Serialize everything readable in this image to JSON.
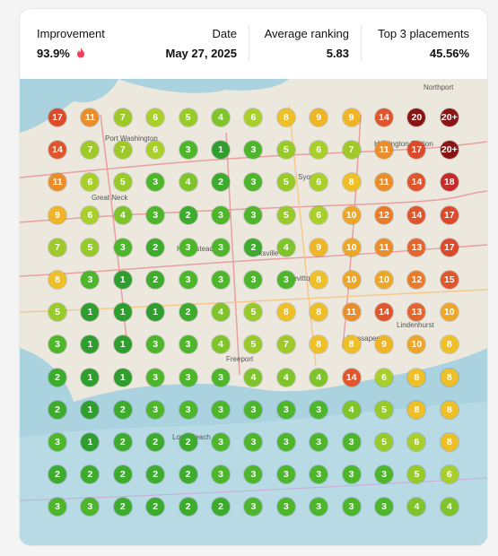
{
  "header": {
    "improvement_label": "Improvement",
    "improvement_value": "93.9%",
    "date_label": "Date",
    "date_value": "May 27, 2025",
    "avg_label": "Average ranking",
    "avg_value": "5.83",
    "top3_label": "Top 3 placements",
    "top3_value": "45.56%"
  },
  "map": {
    "places": [
      "Port Washington",
      "Great Neck",
      "Hempstead",
      "Huntington Station",
      "Hicksville",
      "Levittown",
      "Massapequa",
      "Long Beach",
      "Freeport",
      "Syosset",
      "Lindenhurst",
      "Northport"
    ]
  },
  "grid": {
    "rows": [
      [
        17,
        11,
        7,
        6,
        5,
        4,
        6,
        8,
        9,
        9,
        14,
        20,
        "20+"
      ],
      [
        14,
        7,
        7,
        6,
        3,
        1,
        3,
        5,
        6,
        7,
        11,
        17,
        "20+"
      ],
      [
        11,
        6,
        5,
        3,
        4,
        2,
        3,
        5,
        6,
        8,
        11,
        14,
        18
      ],
      [
        9,
        6,
        4,
        3,
        2,
        3,
        3,
        5,
        6,
        10,
        12,
        14,
        17
      ],
      [
        7,
        5,
        3,
        2,
        3,
        3,
        2,
        4,
        9,
        10,
        11,
        13,
        17
      ],
      [
        8,
        3,
        1,
        2,
        3,
        3,
        3,
        3,
        8,
        10,
        10,
        12,
        15
      ],
      [
        5,
        1,
        1,
        1,
        2,
        4,
        5,
        8,
        8,
        11,
        14,
        13,
        10
      ],
      [
        3,
        1,
        1,
        3,
        3,
        4,
        5,
        7,
        8,
        8,
        9,
        10,
        8
      ],
      [
        2,
        1,
        1,
        3,
        3,
        3,
        4,
        4,
        4,
        14,
        6,
        8,
        8
      ],
      [
        2,
        1,
        2,
        3,
        3,
        3,
        3,
        3,
        3,
        4,
        5,
        8,
        8
      ],
      [
        3,
        1,
        2,
        2,
        2,
        3,
        3,
        3,
        3,
        3,
        5,
        6,
        8
      ],
      [
        2,
        2,
        2,
        2,
        2,
        3,
        3,
        3,
        3,
        3,
        3,
        5,
        6
      ],
      [
        3,
        3,
        2,
        2,
        2,
        2,
        3,
        3,
        3,
        3,
        3,
        4,
        4
      ]
    ]
  }
}
